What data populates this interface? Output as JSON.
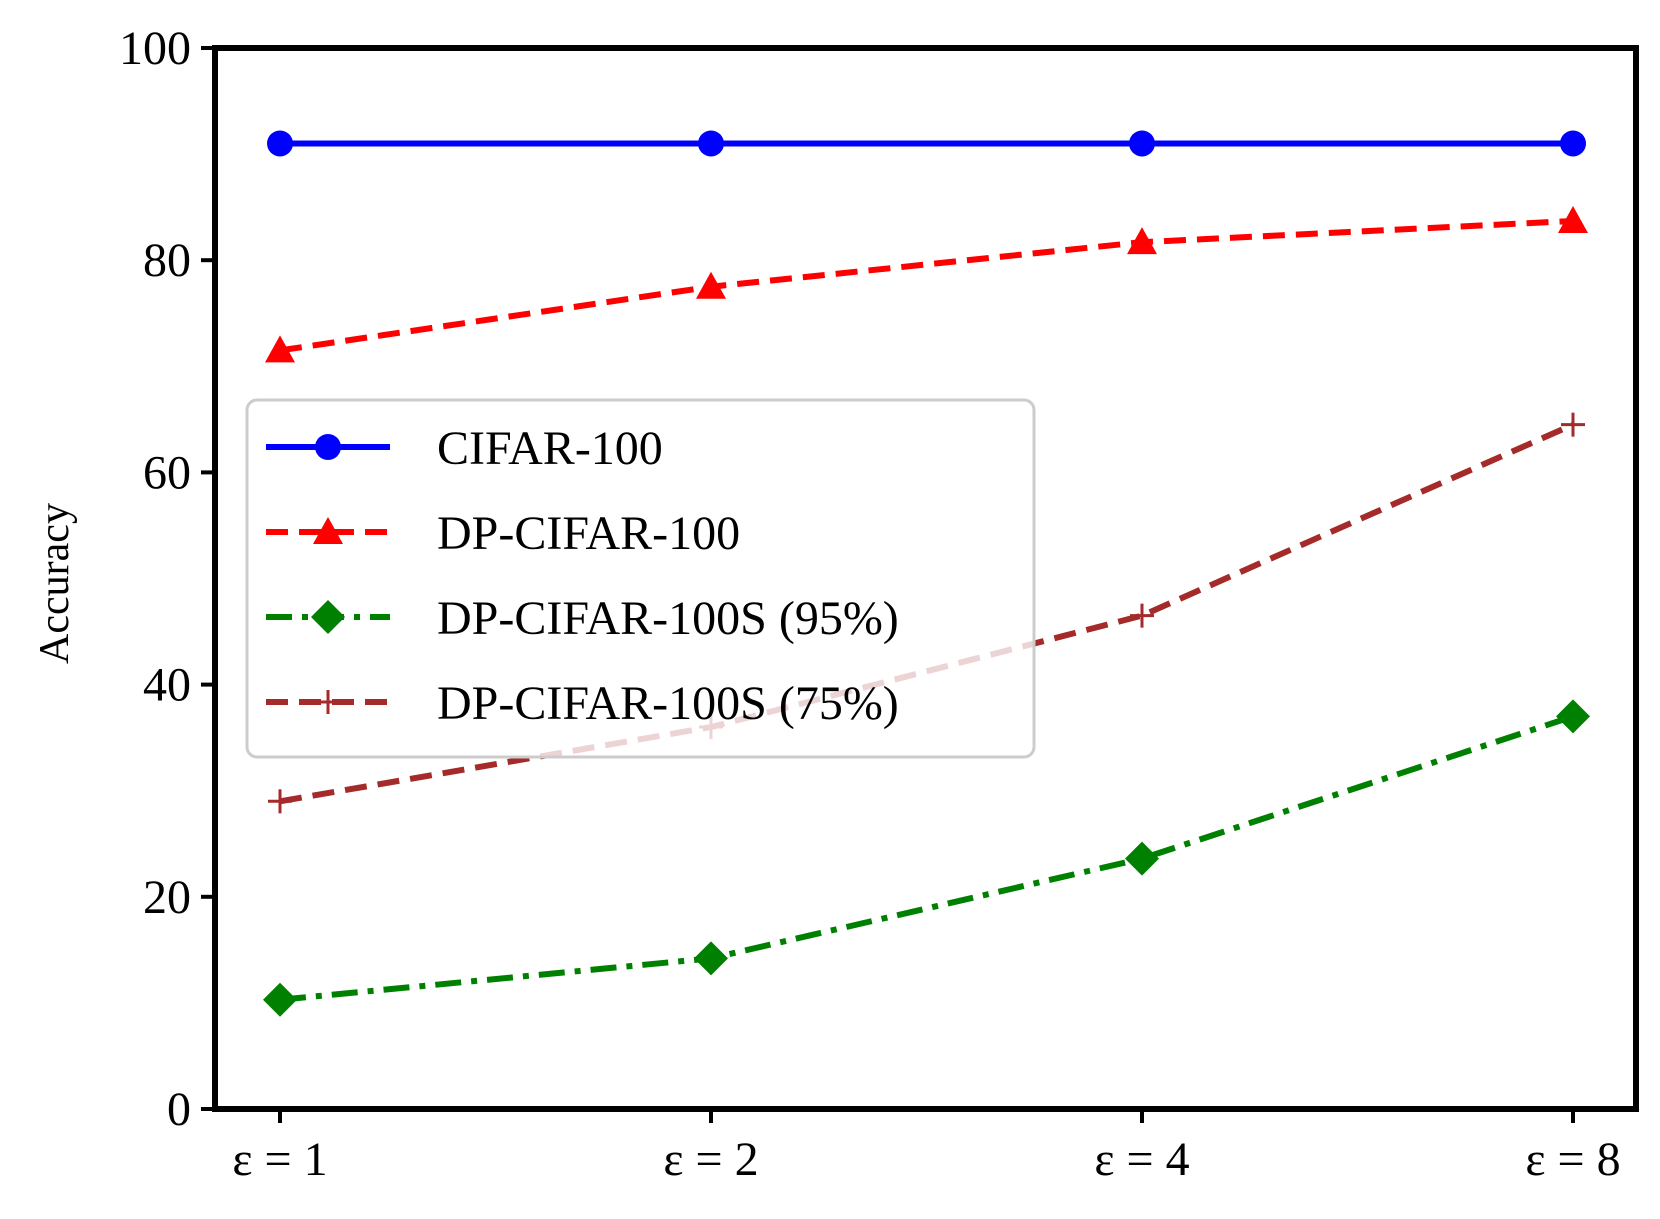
{
  "chart_data": {
    "type": "line",
    "title": "",
    "xlabel": "",
    "ylabel": "Accuracy",
    "categories": [
      "ε = 1",
      "ε = 2",
      "ε = 4",
      "ε = 8"
    ],
    "ylim": [
      0,
      100
    ],
    "yticks": [
      "0",
      "20",
      "40",
      "60",
      "80",
      "100"
    ],
    "grid": false,
    "legend_position": "center-left",
    "series": [
      {
        "name": "CIFAR-100",
        "values": [
          91.0,
          91.0,
          91.0,
          91.0
        ],
        "color": "#0000ff",
        "dash": "solid",
        "marker": "circle"
      },
      {
        "name": "DP-CIFAR-100",
        "values": [
          71.5,
          77.5,
          81.7,
          83.7
        ],
        "color": "#ff0000",
        "dash": "dashed",
        "marker": "triangle"
      },
      {
        "name": "DP-CIFAR-100S (95%)",
        "values": [
          10.3,
          14.2,
          23.6,
          37.0
        ],
        "color": "#008000",
        "dash": "dashdot",
        "marker": "diamond"
      },
      {
        "name": "DP-CIFAR-100S (75%)",
        "values": [
          29.0,
          36.0,
          46.5,
          64.5
        ],
        "color": "#a52a2a",
        "dash": "dashed",
        "marker": "plus"
      }
    ]
  }
}
